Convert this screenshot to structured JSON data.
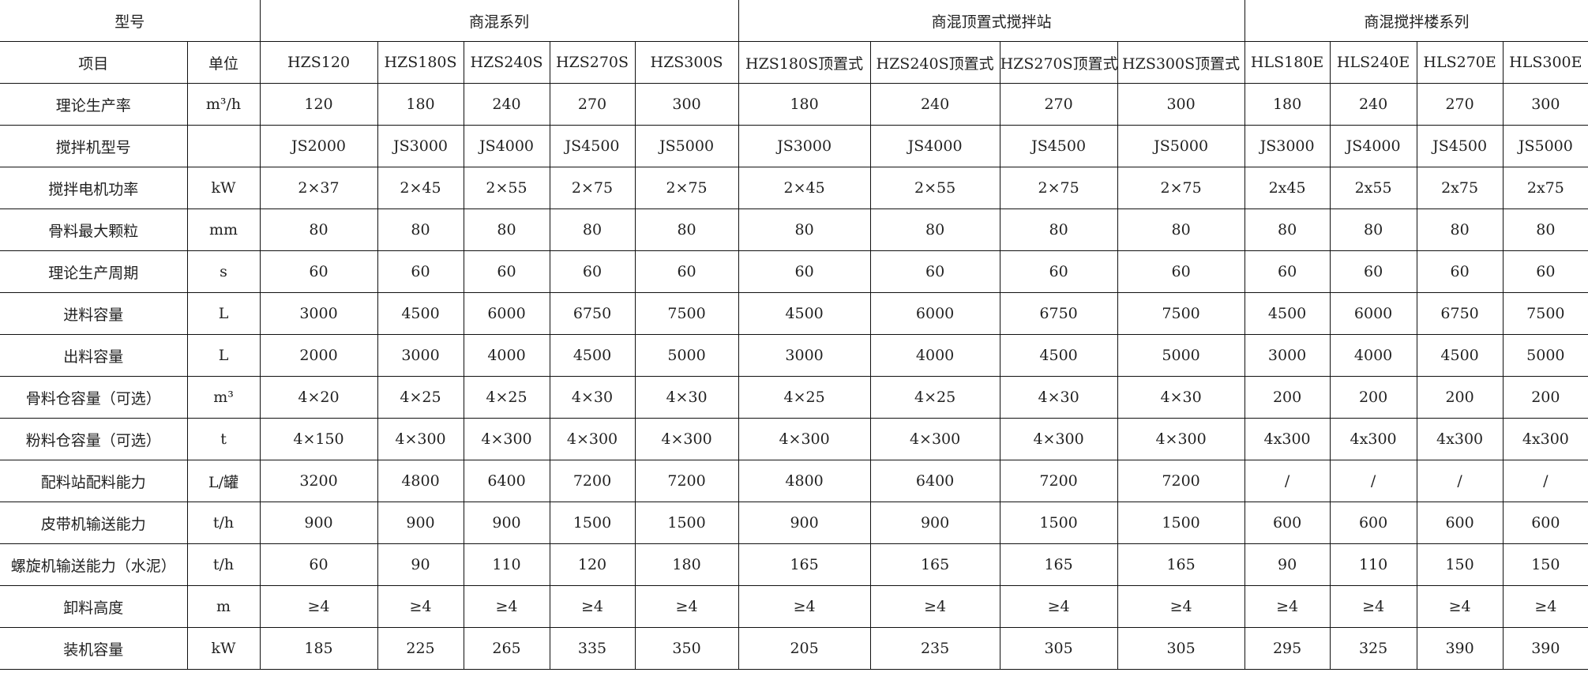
{
  "header": {
    "model_label": "型号",
    "groups": [
      {
        "label": "商混系列",
        "span": 5
      },
      {
        "label": "商混顶置式搅拌站",
        "span": 4
      },
      {
        "label": "商混搅拌楼系列",
        "span": 4
      }
    ],
    "item_label": "项目",
    "unit_label": "单位",
    "models": [
      "HZS120",
      "HZS180S",
      "HZS240S",
      "HZS270S",
      "HZS300S",
      "HZS180S顶置式",
      "HZS240S顶置式",
      "HZS270S顶置式",
      "HZS300S顶置式",
      "HLS180E",
      "HLS240E",
      "HLS270E",
      "HLS300E"
    ]
  },
  "rows": [
    {
      "item": "理论生产率",
      "unit": "m³/h",
      "values": [
        "120",
        "180",
        "240",
        "270",
        "300",
        "180",
        "240",
        "270",
        "300",
        "180",
        "240",
        "270",
        "300"
      ]
    },
    {
      "item": "搅拌机型号",
      "unit": "",
      "values": [
        "JS2000",
        "JS3000",
        "JS4000",
        "JS4500",
        "JS5000",
        "JS3000",
        "JS4000",
        "JS4500",
        "JS5000",
        "JS3000",
        "JS4000",
        "JS4500",
        "JS5000"
      ]
    },
    {
      "item": "搅拌电机功率",
      "unit": "kW",
      "values": [
        "2×37",
        "2×45",
        "2×55",
        "2×75",
        "2×75",
        "2×45",
        "2×55",
        "2×75",
        "2×75",
        "2x45",
        "2x55",
        "2x75",
        "2x75"
      ]
    },
    {
      "item": "骨料最大颗粒",
      "unit": "mm",
      "values": [
        "80",
        "80",
        "80",
        "80",
        "80",
        "80",
        "80",
        "80",
        "80",
        "80",
        "80",
        "80",
        "80"
      ]
    },
    {
      "item": "理论生产周期",
      "unit": "s",
      "values": [
        "60",
        "60",
        "60",
        "60",
        "60",
        "60",
        "60",
        "60",
        "60",
        "60",
        "60",
        "60",
        "60"
      ]
    },
    {
      "item": "进料容量",
      "unit": "L",
      "values": [
        "3000",
        "4500",
        "6000",
        "6750",
        "7500",
        "4500",
        "6000",
        "6750",
        "7500",
        "4500",
        "6000",
        "6750",
        "7500"
      ]
    },
    {
      "item": "出料容量",
      "unit": "L",
      "values": [
        "2000",
        "3000",
        "4000",
        "4500",
        "5000",
        "3000",
        "4000",
        "4500",
        "5000",
        "3000",
        "4000",
        "4500",
        "5000"
      ]
    },
    {
      "item": "骨料仓容量（可选）",
      "unit": "m³",
      "values": [
        "4×20",
        "4×25",
        "4×25",
        "4×30",
        "4×30",
        "4×25",
        "4×25",
        "4×30",
        "4×30",
        "200",
        "200",
        "200",
        "200"
      ]
    },
    {
      "item": "粉料仓容量（可选）",
      "unit": "t",
      "values": [
        "4×150",
        "4×300",
        "4×300",
        "4×300",
        "4×300",
        "4×300",
        "4×300",
        "4×300",
        "4×300",
        "4x300",
        "4x300",
        "4x300",
        "4x300"
      ]
    },
    {
      "item": "配料站配料能力",
      "unit": "L/罐",
      "values": [
        "3200",
        "4800",
        "6400",
        "7200",
        "7200",
        "4800",
        "6400",
        "7200",
        "7200",
        "/",
        "/",
        "/",
        "/"
      ]
    },
    {
      "item": "皮带机输送能力",
      "unit": "t/h",
      "values": [
        "900",
        "900",
        "900",
        "1500",
        "1500",
        "900",
        "900",
        "1500",
        "1500",
        "600",
        "600",
        "600",
        "600"
      ]
    },
    {
      "item": "螺旋机输送能力（水泥）",
      "unit": "t/h",
      "values": [
        "60",
        "90",
        "110",
        "120",
        "180",
        "165",
        "165",
        "165",
        "165",
        "90",
        "110",
        "150",
        "150"
      ]
    },
    {
      "item": "卸料高度",
      "unit": "m",
      "values": [
        "≥4",
        "≥4",
        "≥4",
        "≥4",
        "≥4",
        "≥4",
        "≥4",
        "≥4",
        "≥4",
        "≥4",
        "≥4",
        "≥4",
        "≥4"
      ]
    },
    {
      "item": "装机容量",
      "unit": "kW",
      "values": [
        "185",
        "225",
        "265",
        "335",
        "350",
        "205",
        "235",
        "305",
        "305",
        "295",
        "325",
        "390",
        "390"
      ]
    }
  ]
}
